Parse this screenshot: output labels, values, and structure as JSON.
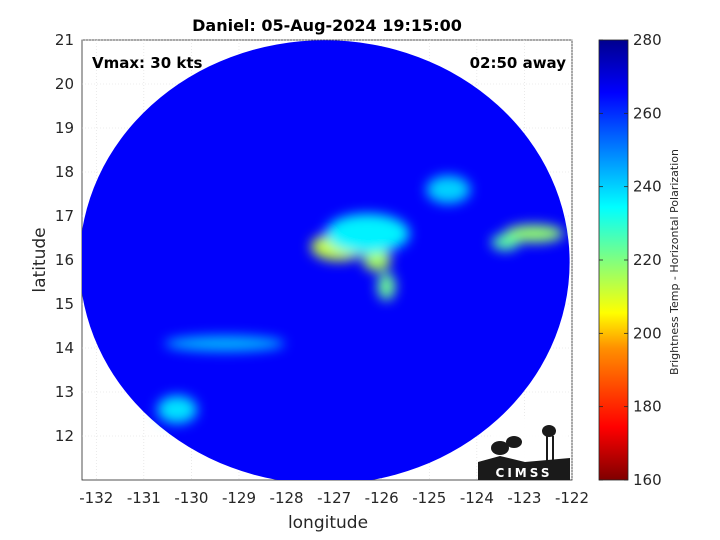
{
  "chart_data": {
    "type": "heatmap",
    "title": "Daniel: 05-Aug-2024 19:15:00",
    "xlabel": "longitude",
    "ylabel": "latitude",
    "xlim": [
      -132.3,
      -122
    ],
    "ylim": [
      11,
      21
    ],
    "x_ticks": [
      -132,
      -131,
      -130,
      -129,
      -128,
      -127,
      -126,
      -125,
      -124,
      -123,
      -122
    ],
    "y_ticks": [
      12,
      13,
      14,
      15,
      16,
      17,
      18,
      19,
      20,
      21
    ],
    "annotations": {
      "left": "Vmax: 30 kts",
      "right": "02:50 away"
    },
    "colorbar": {
      "label": "Brightness Temp - Horizontal Polarization",
      "range": [
        160,
        280
      ],
      "ticks": [
        160,
        180,
        200,
        220,
        240,
        260,
        280
      ],
      "colormap": [
        "#7f0000",
        "#ff0000",
        "#ff8000",
        "#ffff00",
        "#80ff80",
        "#00ffff",
        "#0080ff",
        "#0000ff",
        "#00008f"
      ]
    },
    "swath": {
      "center_lon": -127.2,
      "center_lat": 15.95,
      "background_value": 266
    },
    "features": [
      {
        "name": "core",
        "lon": -126.9,
        "lat": 16.3,
        "value": 212
      },
      {
        "name": "core-south",
        "lon": -126.1,
        "lat": 16.0,
        "value": 215
      },
      {
        "name": "band-south",
        "lon": -125.9,
        "lat": 15.4,
        "value": 222
      },
      {
        "name": "outer-band",
        "lon": -126.3,
        "lat": 16.6,
        "value": 236
      },
      {
        "name": "eastern-band",
        "lon": -122.8,
        "lat": 16.6,
        "value": 218
      },
      {
        "name": "eastern-band-tail",
        "lon": -123.4,
        "lat": 16.4,
        "value": 224
      },
      {
        "name": "northeast-cells",
        "lon": -124.6,
        "lat": 17.6,
        "value": 240
      },
      {
        "name": "southwest-cells",
        "lon": -130.3,
        "lat": 12.6,
        "value": 238
      },
      {
        "name": "rain-band-west",
        "lon": -129.3,
        "lat": 14.1,
        "value": 244
      }
    ]
  },
  "logo": {
    "text": "CIMSS"
  }
}
